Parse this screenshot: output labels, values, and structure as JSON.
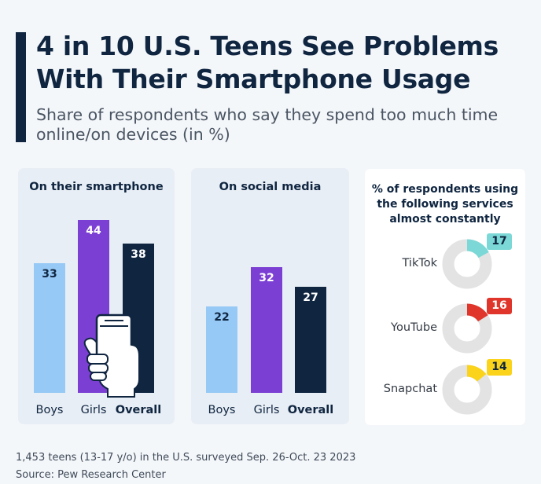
{
  "header": {
    "title_line1": "4 in 10 U.S. Teens See Problems",
    "title_line2": "With Their Smartphone Usage",
    "subtitle": "Share of respondents who say they spend too much time online/on devices (in %)"
  },
  "colors": {
    "boys": "#96c9f5",
    "girls": "#7c3fd4",
    "overall": "#0f2540",
    "tiktok": "#7bd8d6",
    "youtube": "#e0352b",
    "snapchat": "#fad31a",
    "donut_track": "#e3e3e3"
  },
  "chart_data": [
    {
      "type": "bar",
      "title": "On their smartphone",
      "categories": [
        "Boys",
        "Girls",
        "Overall"
      ],
      "values": [
        33,
        44,
        38
      ],
      "ylim": [
        0,
        50
      ],
      "xlabel": "",
      "ylabel": "",
      "grid": false
    },
    {
      "type": "bar",
      "title": "On social media",
      "categories": [
        "Boys",
        "Girls",
        "Overall"
      ],
      "values": [
        22,
        32,
        27
      ],
      "ylim": [
        0,
        50
      ],
      "xlabel": "",
      "ylabel": "",
      "grid": false
    },
    {
      "type": "pie",
      "title": "% of respondents using the following services almost constantly",
      "categories": [
        "TikTok",
        "YouTube",
        "Snapchat"
      ],
      "values": [
        17,
        16,
        14
      ]
    }
  ],
  "donut_title_lines": [
    "% of respondents using",
    "the following services",
    "almost constantly"
  ],
  "footer": {
    "note": "1,453 teens (13-17 y/o) in the U.S. surveyed Sep. 26-Oct. 23 2023",
    "source": "Source: Pew Research Center"
  }
}
